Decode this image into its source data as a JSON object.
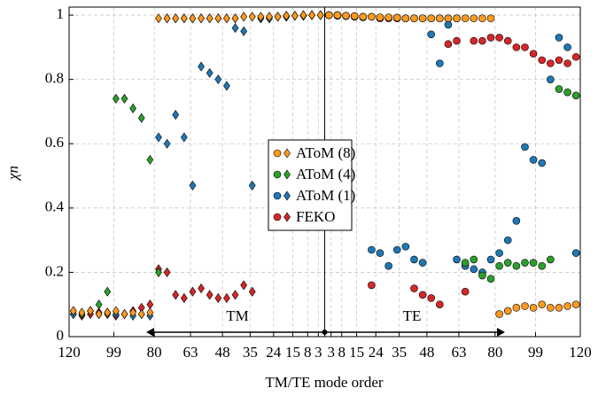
{
  "chart_data": {
    "type": "scatter",
    "xlabel": "TM/TE mode order",
    "ylabel": "χn",
    "annotations": [
      "TM",
      "TE"
    ],
    "x": [
      -118,
      -114,
      -110,
      -106,
      -102,
      -98,
      -94,
      -90,
      -86,
      -82,
      -78,
      -74,
      -70,
      -66,
      -62,
      -58,
      -54,
      -50,
      -46,
      -42,
      -38,
      -34,
      -30,
      -26,
      -22,
      -18,
      -14,
      -10,
      -6,
      -2,
      2,
      6,
      10,
      14,
      18,
      22,
      26,
      30,
      34,
      38,
      42,
      46,
      50,
      54,
      58,
      62,
      66,
      70,
      74,
      78,
      82,
      86,
      90,
      94,
      98,
      102,
      106,
      110,
      114,
      118
    ],
    "series": [
      {
        "name": "AToM (8)",
        "color": "#ff9a1f",
        "values": [
          0.08,
          0.075,
          0.08,
          0.07,
          0.075,
          0.08,
          0.07,
          0.075,
          0.07,
          0.075,
          0.99,
          0.99,
          0.99,
          0.99,
          0.99,
          0.99,
          0.99,
          0.99,
          0.99,
          0.99,
          0.995,
          0.995,
          0.995,
          0.995,
          0.995,
          0.998,
          0.998,
          1.0,
          1.0,
          1.0,
          1.0,
          1.0,
          0.998,
          0.997,
          0.995,
          0.995,
          0.993,
          0.993,
          0.992,
          0.99,
          0.99,
          0.99,
          0.99,
          0.99,
          0.99,
          0.99,
          0.99,
          0.99,
          0.99,
          0.99,
          0.07,
          0.08,
          0.09,
          0.095,
          0.09,
          0.1,
          0.09,
          0.09,
          0.095,
          0.1
        ]
      },
      {
        "name": "AToM (4)",
        "color": "#2ca02c",
        "values": [
          0.08,
          0.07,
          0.08,
          0.1,
          0.14,
          0.74,
          0.74,
          0.71,
          0.68,
          0.55,
          0.2,
          0.99,
          0.99,
          0.99,
          0.99,
          0.99,
          0.99,
          0.99,
          0.99,
          0.99,
          0.995,
          0.995,
          0.995,
          0.995,
          0.995,
          0.998,
          0.998,
          1.0,
          1.0,
          1.0,
          1.0,
          1.0,
          0.998,
          0.997,
          0.995,
          0.995,
          0.993,
          0.993,
          0.992,
          0.99,
          0.99,
          0.99,
          0.99,
          0.99,
          0.99,
          0.99,
          0.23,
          0.24,
          0.19,
          0.18,
          0.22,
          0.23,
          0.22,
          0.23,
          0.23,
          0.22,
          0.24,
          0.77,
          0.76,
          0.75
        ]
      },
      {
        "name": "AToM (1)",
        "color": "#1f77b4",
        "values": [
          0.07,
          0.07,
          0.08,
          0.07,
          0.075,
          0.07,
          0.07,
          0.065,
          0.07,
          0.065,
          0.62,
          0.6,
          0.69,
          0.62,
          0.47,
          0.84,
          0.82,
          0.8,
          0.78,
          0.96,
          0.95,
          0.47,
          0.99,
          0.99,
          0.995,
          0.995,
          0.998,
          0.998,
          1.0,
          1.0,
          1.0,
          1.0,
          0.998,
          0.997,
          0.995,
          0.27,
          0.26,
          0.22,
          0.27,
          0.28,
          0.24,
          0.23,
          0.94,
          0.85,
          0.97,
          0.24,
          0.22,
          0.21,
          0.2,
          0.24,
          0.26,
          0.3,
          0.36,
          0.59,
          0.55,
          0.54,
          0.8,
          0.93,
          0.9,
          0.26
        ]
      },
      {
        "name": "FEKO",
        "color": "#d62728",
        "values": [
          0.07,
          0.065,
          0.07,
          0.075,
          0.07,
          0.065,
          0.07,
          0.08,
          0.09,
          0.1,
          0.21,
          0.2,
          0.13,
          0.12,
          0.14,
          0.15,
          0.13,
          0.12,
          0.12,
          0.13,
          0.16,
          0.14,
          0.99,
          0.99,
          0.995,
          0.995,
          0.998,
          0.998,
          1.0,
          1.0,
          1.0,
          0.998,
          0.997,
          0.995,
          0.993,
          0.16,
          0.99,
          0.99,
          0.99,
          0.99,
          0.15,
          0.13,
          0.12,
          0.1,
          0.91,
          0.92,
          0.14,
          0.92,
          0.92,
          0.93,
          0.93,
          0.92,
          0.9,
          0.9,
          0.88,
          0.86,
          0.85,
          0.86,
          0.85,
          0.87
        ]
      }
    ],
    "xlim": [
      -120,
      120
    ],
    "xticks": [
      {
        "value": -120,
        "label": "120"
      },
      {
        "value": -99,
        "label": "99"
      },
      {
        "value": -80,
        "label": "80"
      },
      {
        "value": -63,
        "label": "63"
      },
      {
        "value": -48,
        "label": "48"
      },
      {
        "value": -35,
        "label": "35"
      },
      {
        "value": -24,
        "label": "24"
      },
      {
        "value": -15,
        "label": "15"
      },
      {
        "value": -8,
        "label": "8"
      },
      {
        "value": -3,
        "label": "3"
      },
      3,
      8,
      15,
      24,
      35,
      48,
      63,
      80,
      99,
      120
    ],
    "ylim": [
      0,
      1.025
    ],
    "yticks": [
      0,
      0.2,
      0.4,
      0.6,
      0.8,
      1
    ],
    "grid": true,
    "legend": "center"
  }
}
